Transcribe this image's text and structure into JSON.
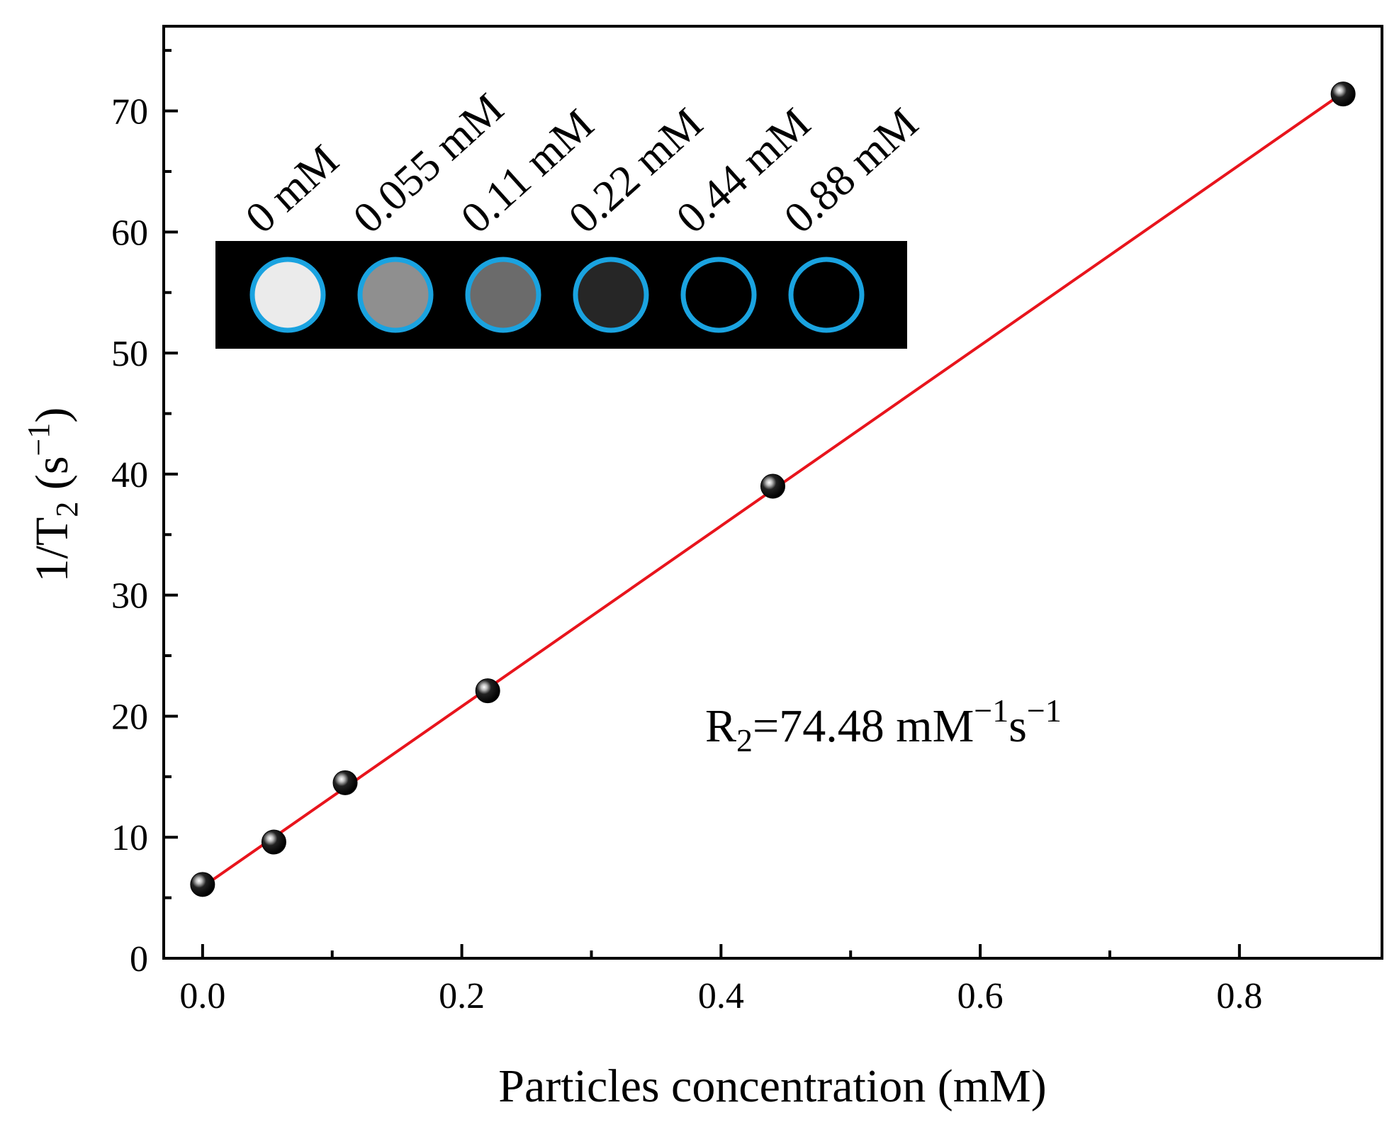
{
  "chart_data": {
    "type": "scatter",
    "xlabel": "Particles concentration  (mM)",
    "ylabel": {
      "main": "1/T",
      "sub": "2",
      "unit_open": " (s",
      "sup": "−1",
      "unit_close": ")"
    },
    "xlim": [
      -0.03,
      0.91
    ],
    "ylim": [
      0,
      77
    ],
    "x_ticks": [
      0.0,
      0.2,
      0.4,
      0.6,
      0.8
    ],
    "x_tick_labels": [
      "0.0",
      "0.2",
      "0.4",
      "0.6",
      "0.8"
    ],
    "x_minor_ticks": [
      0.1,
      0.3,
      0.5,
      0.7
    ],
    "y_ticks": [
      0,
      10,
      20,
      30,
      40,
      50,
      60,
      70
    ],
    "y_tick_labels": [
      "0",
      "10",
      "20",
      "30",
      "40",
      "50",
      "60",
      "70"
    ],
    "y_minor_ticks": [
      5,
      15,
      25,
      35,
      45,
      55,
      65,
      75
    ],
    "series": [
      {
        "points": [
          {
            "x": 0.0,
            "y": 6.1
          },
          {
            "x": 0.055,
            "y": 9.6
          },
          {
            "x": 0.11,
            "y": 14.5
          },
          {
            "x": 0.22,
            "y": 22.1
          },
          {
            "x": 0.44,
            "y": 39.0
          },
          {
            "x": 0.88,
            "y": 71.4
          }
        ],
        "color": "#111111"
      }
    ],
    "fit_line": {
      "x": [
        0.0,
        0.88
      ],
      "y": [
        5.9,
        71.5
      ],
      "color": "#e8141c"
    },
    "annotation": {
      "main": "R",
      "sub": "2",
      "eq": "=74.48 mM",
      "sup1": "−1",
      "mid": "s",
      "sup2": "−1"
    },
    "inset": {
      "labels": [
        "0 mM",
        "0.055 mM",
        "0.11 mM",
        "0.22 mM",
        "0.44 mM",
        "0.88 mM"
      ],
      "intensities": [
        0.92,
        0.56,
        0.42,
        0.15,
        0.0,
        0.0
      ],
      "ring_color": "#1aa3e0",
      "background": "#000000"
    },
    "grid": false,
    "legend": "none"
  }
}
